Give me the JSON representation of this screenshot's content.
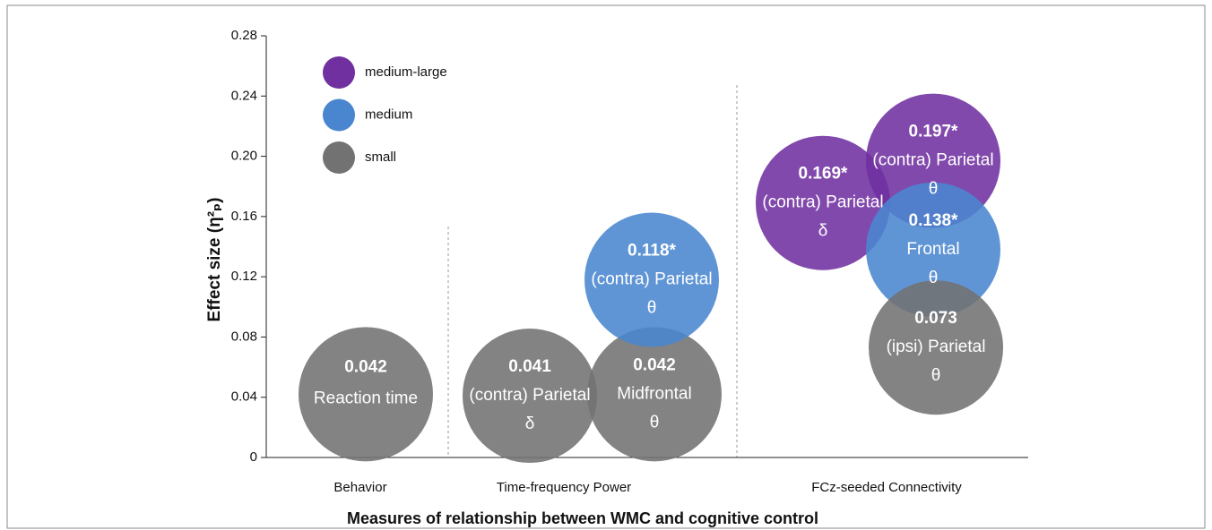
{
  "chart_data": {
    "type": "bubble",
    "ylabel": "Effect size (η²ₚ)",
    "xlabel": "Measures of relationship between WMC and cognitive control",
    "ylim": [
      0,
      0.28
    ],
    "yticks": [
      0,
      0.04,
      0.08,
      0.12,
      0.16,
      {
        "value": 0.2,
        "label": "0.20"
      },
      0.24,
      0.28
    ],
    "legend": [
      {
        "name": "medium-large",
        "color": "#7030a0"
      },
      {
        "name": "medium",
        "color": "#4a86cf"
      },
      {
        "name": "small",
        "color": "#727272"
      }
    ],
    "groups": [
      {
        "name": "Behavior",
        "bubbles": [
          {
            "value": 0.042,
            "value_label": "0.042",
            "measure": "Reaction time",
            "effect": "small"
          }
        ]
      },
      {
        "name": "Time-frequency Power",
        "bubbles": [
          {
            "value": 0.041,
            "value_label": "0.041",
            "measure": "(contra) Parietal",
            "band": "δ",
            "effect": "small"
          },
          {
            "value": 0.042,
            "value_label": "0.042",
            "measure": "Midfrontal",
            "band": "θ",
            "effect": "small"
          },
          {
            "value": 0.118,
            "value_label": "0.118*",
            "measure": "(contra) Parietal",
            "band": "θ",
            "effect": "medium"
          }
        ]
      },
      {
        "name": "FCz-seeded Connectivity",
        "bubbles": [
          {
            "value": 0.169,
            "value_label": "0.169*",
            "measure": "(contra) Parietal",
            "band": "δ",
            "effect": "medium-large"
          },
          {
            "value": 0.197,
            "value_label": "0.197*",
            "measure": "(contra) Parietal",
            "band": "θ",
            "effect": "medium-large"
          },
          {
            "value": 0.138,
            "value_label": "0.138*",
            "measure": "Frontal",
            "band": "θ",
            "effect": "medium"
          },
          {
            "value": 0.073,
            "value_label": "0.073",
            "measure": "(ipsi) Parietal",
            "band": "θ",
            "effect": "small"
          }
        ]
      }
    ]
  }
}
